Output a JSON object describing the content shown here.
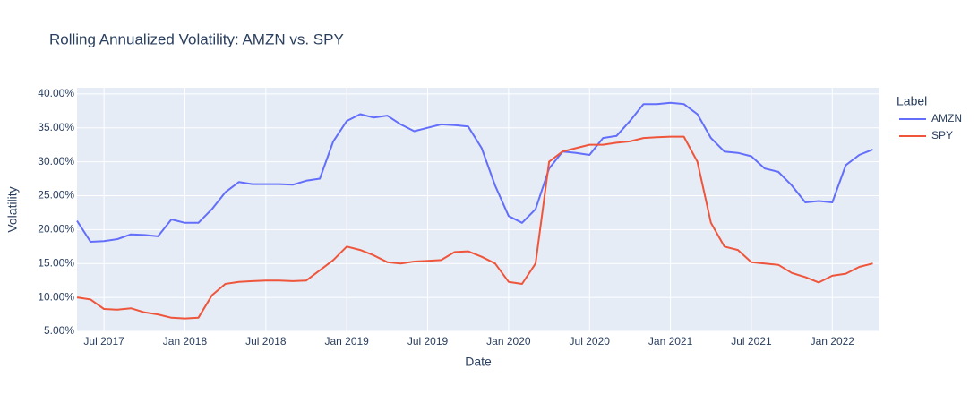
{
  "chart_data": {
    "type": "line",
    "title": "Rolling Annualized Volatility: AMZN vs. SPY",
    "x_label": "Date",
    "y_label": "Volatility",
    "legend_title": "Label",
    "legend": "right",
    "grid": true,
    "x": [
      "2017-05",
      "2017-06",
      "2017-07",
      "2017-08",
      "2017-09",
      "2017-10",
      "2017-11",
      "2017-12",
      "2018-01",
      "2018-02",
      "2018-03",
      "2018-04",
      "2018-05",
      "2018-06",
      "2018-07",
      "2018-08",
      "2018-09",
      "2018-10",
      "2018-11",
      "2018-12",
      "2019-01",
      "2019-02",
      "2019-03",
      "2019-04",
      "2019-05",
      "2019-06",
      "2019-07",
      "2019-08",
      "2019-09",
      "2019-10",
      "2019-11",
      "2019-12",
      "2020-01",
      "2020-02",
      "2020-03",
      "2020-04",
      "2020-05",
      "2020-06",
      "2020-07",
      "2020-08",
      "2020-09",
      "2020-10",
      "2020-11",
      "2020-12",
      "2021-01",
      "2021-02",
      "2021-03",
      "2021-04",
      "2021-05",
      "2021-06",
      "2021-07",
      "2021-08",
      "2021-09",
      "2021-10",
      "2021-11",
      "2021-12",
      "2022-01",
      "2022-02",
      "2022-03",
      "2022-04"
    ],
    "series": [
      {
        "name": "AMZN",
        "color": "#636efa",
        "values": [
          21.3,
          18.2,
          18.3,
          18.6,
          19.3,
          19.2,
          19.0,
          21.5,
          21.0,
          21.0,
          23.0,
          25.5,
          27.0,
          26.7,
          26.7,
          26.7,
          26.6,
          27.2,
          27.5,
          33.0,
          36.0,
          37.0,
          36.5,
          36.8,
          35.5,
          34.5,
          35.0,
          35.5,
          35.4,
          35.2,
          32.0,
          26.5,
          22.0,
          21.0,
          23.0,
          29.0,
          31.5,
          31.3,
          31.0,
          33.5,
          33.8,
          36.0,
          38.5,
          38.5,
          38.7,
          38.5,
          37.0,
          33.5,
          31.5,
          31.3,
          30.8,
          29.0,
          28.5,
          26.5,
          24.0,
          24.2,
          24.0,
          29.5,
          31.0,
          31.8
        ]
      },
      {
        "name": "SPY",
        "color": "#EF553B",
        "values": [
          10.0,
          9.7,
          8.3,
          8.2,
          8.4,
          7.8,
          7.5,
          7.0,
          6.9,
          7.0,
          10.3,
          12.0,
          12.3,
          12.4,
          12.5,
          12.5,
          12.4,
          12.5,
          14.0,
          15.5,
          17.5,
          17.0,
          16.2,
          15.2,
          15.0,
          15.3,
          15.4,
          15.5,
          16.7,
          16.8,
          16.0,
          15.0,
          12.3,
          12.0,
          15.0,
          30.0,
          31.5,
          32.0,
          32.5,
          32.5,
          32.8,
          33.0,
          33.5,
          33.6,
          33.7,
          33.7,
          30.0,
          21.0,
          17.5,
          17.0,
          15.2,
          15.0,
          14.8,
          13.6,
          13.0,
          12.2,
          13.2,
          13.5,
          14.5,
          15.0
        ]
      }
    ],
    "xlim": [
      "2017-05",
      "2022-04"
    ],
    "xticks": [
      {
        "value": "2017-07",
        "label": "Jul 2017"
      },
      {
        "value": "2018-01",
        "label": "Jan 2018"
      },
      {
        "value": "2018-07",
        "label": "Jul 2018"
      },
      {
        "value": "2019-01",
        "label": "Jan 2019"
      },
      {
        "value": "2019-07",
        "label": "Jul 2019"
      },
      {
        "value": "2020-01",
        "label": "Jan 2020"
      },
      {
        "value": "2020-07",
        "label": "Jul 2020"
      },
      {
        "value": "2021-01",
        "label": "Jan 2021"
      },
      {
        "value": "2021-07",
        "label": "Jul 2021"
      },
      {
        "value": "2022-01",
        "label": "Jan 2022"
      }
    ],
    "ylim": [
      5,
      40.9
    ],
    "yticks": [
      {
        "value": 5,
        "label": "5.00%"
      },
      {
        "value": 10,
        "label": "10.00%"
      },
      {
        "value": 15,
        "label": "15.00%"
      },
      {
        "value": 20,
        "label": "20.00%"
      },
      {
        "value": 25,
        "label": "25.00%"
      },
      {
        "value": 30,
        "label": "30.00%"
      },
      {
        "value": 35,
        "label": "35.00%"
      },
      {
        "value": 40,
        "label": "40.00%"
      }
    ]
  }
}
